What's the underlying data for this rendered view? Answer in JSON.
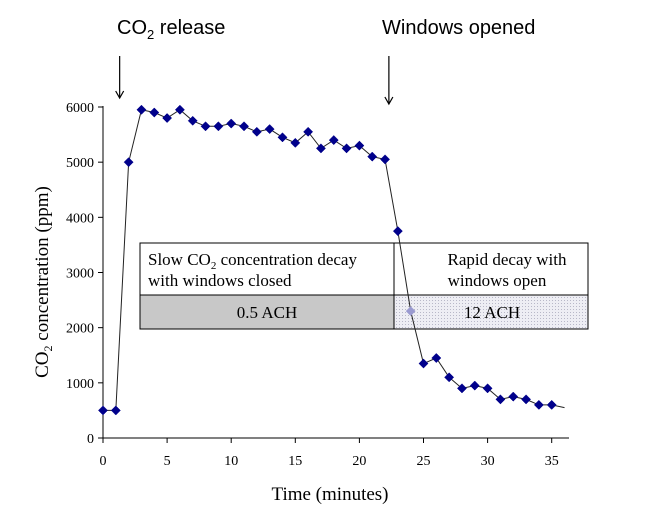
{
  "chart_data": {
    "type": "line",
    "xlabel": "Time (minutes)",
    "ylabel": {
      "prefix": "CO",
      "sub": "2",
      "suffix": " concentration (ppm)"
    },
    "xlim": [
      0,
      35
    ],
    "ylim": [
      0,
      6000
    ],
    "x_ticks": [
      0,
      5,
      10,
      15,
      20,
      25,
      30,
      35
    ],
    "y_ticks": [
      0,
      1000,
      2000,
      3000,
      4000,
      5000,
      6000
    ],
    "grid": false,
    "legend": "none",
    "series": [
      {
        "color": "#00008b",
        "marker": "diamond",
        "x": [
          0,
          1,
          2,
          3,
          4,
          5,
          6,
          7,
          8,
          9,
          10,
          11,
          12,
          13,
          14,
          15,
          16,
          17,
          18,
          19,
          20,
          21,
          22,
          23,
          24,
          25,
          26,
          27,
          28,
          29,
          30,
          31,
          32,
          33,
          34,
          35,
          36
        ],
        "y": [
          500,
          500,
          5000,
          5950,
          5900,
          5800,
          5950,
          5750,
          5650,
          5650,
          5700,
          5650,
          5550,
          5600,
          5450,
          5350,
          5550,
          5250,
          5400,
          5250,
          5300,
          5100,
          5050,
          3750,
          2300,
          1350,
          1450,
          1100,
          900,
          950,
          900,
          700,
          750,
          700,
          600,
          600,
          550
        ]
      }
    ],
    "annotations": {
      "co2_release": {
        "prefix": "CO",
        "sub": "2",
        "suffix": " release",
        "x": 1.3
      },
      "windows_opened": {
        "text": "Windows opened",
        "x": 22.3
      }
    },
    "regions": {
      "slow": {
        "line1_prefix": "Slow CO",
        "line1_sub": "2",
        "line1_suffix": " concentration decay",
        "line2": "with windows closed",
        "rate": "0.5 ACH",
        "fill": "#c8c8c8"
      },
      "rapid": {
        "line1": "Rapid decay with",
        "line2": "windows open",
        "rate": "12 ACH",
        "fill": "#e6e6ee"
      }
    }
  }
}
